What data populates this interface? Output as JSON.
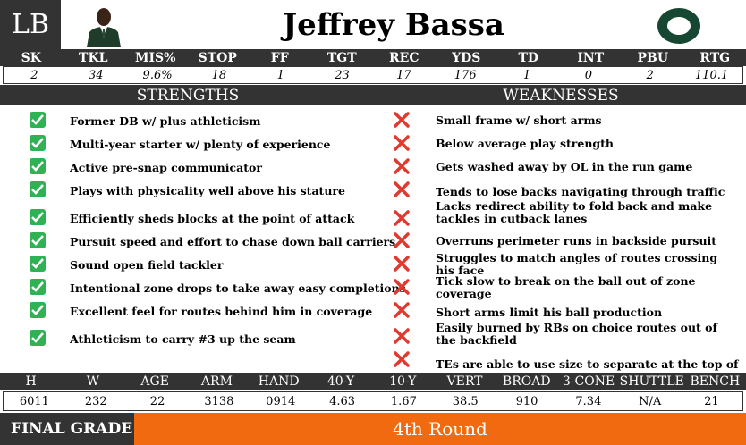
{
  "header": {
    "position": "LB",
    "player_name": "Jeffrey Bassa",
    "team_logo_letter": "O",
    "team_color": "#154733",
    "accent_color": "#fee123"
  },
  "stats": {
    "columns": [
      "SK",
      "TKL",
      "MIS%",
      "STOP",
      "FF",
      "TGT",
      "REC",
      "YDS",
      "TD",
      "INT",
      "PBU",
      "RTG"
    ],
    "values": [
      "2",
      "34",
      "9.6%",
      "18",
      "1",
      "23",
      "17",
      "176",
      "1",
      "0",
      "2",
      "110.1"
    ]
  },
  "strengths": {
    "title": "STRENGTHS",
    "items": [
      "Former DB w/ plus athleticism",
      "Multi-year starter w/ plenty of experience",
      "Active pre-snap communicator",
      "Plays with physicality well above his stature",
      "Efficiently sheds blocks at the point of attack",
      "Pursuit speed and effort to chase down ball carriers",
      "Sound open field tackler",
      "Intentional zone drops to take away easy completions",
      "Excellent feel for routes behind him in coverage",
      "Athleticism to carry #3 up the seam"
    ]
  },
  "weaknesses": {
    "title": "WEAKNESSES",
    "items": [
      "Small frame w/ short arms",
      "Below average play strength",
      "Gets washed away by OL in the run game",
      "Tends to lose backs navigating through traffic",
      "Lacks redirect ability to fold back and make tackles in cutback lanes",
      "Overruns perimeter runs in backside pursuit",
      "Struggles to match angles of routes crossing his face",
      "Tick slow to break on the ball out of zone coverage",
      "Short arms limit his ball production",
      "Easily burned by RBs on choice routes out of the backfield",
      "TEs are able to use size to separate at the top of routes"
    ]
  },
  "measurables": {
    "columns": [
      "H",
      "W",
      "AGE",
      "ARM",
      "HAND",
      "40-Y",
      "10-Y",
      "VERT",
      "BROAD",
      "3-CONE",
      "SHUTTLE",
      "BENCH"
    ],
    "values": [
      "6011",
      "232",
      "22",
      "3138",
      "0914",
      "4.63",
      "1.67",
      "38.5",
      "910",
      "7.34",
      "N/A",
      "21"
    ]
  },
  "final": {
    "label": "FINAL GRADE",
    "grade": "4th Round"
  }
}
